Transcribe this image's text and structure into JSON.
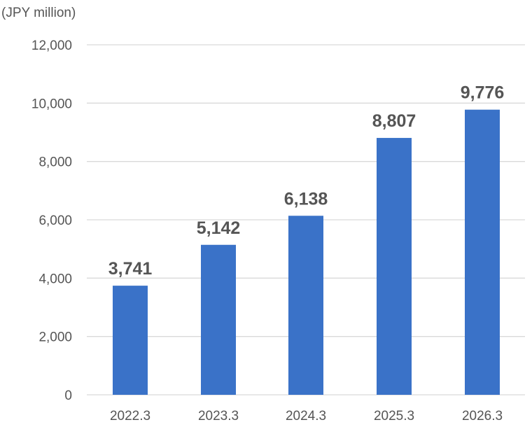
{
  "chart_data": {
    "type": "bar",
    "unit_label": "(JPY million)",
    "categories": [
      "2022.3",
      "2023.3",
      "2024.3",
      "2025.3",
      "2026.3"
    ],
    "values": [
      3741,
      5142,
      6138,
      8807,
      9776
    ],
    "data_labels": [
      "3,741",
      "5,142",
      "6,138",
      "8,807",
      "9,776"
    ],
    "ylim": [
      0,
      12000
    ],
    "yticks": [
      0,
      2000,
      4000,
      6000,
      8000,
      10000,
      12000
    ],
    "ytick_labels": [
      "0",
      "2,000",
      "4,000",
      "6,000",
      "8,000",
      "10,000",
      "12,000"
    ],
    "bar_color": "#3a72c8",
    "grid": true,
    "legend": "none"
  }
}
